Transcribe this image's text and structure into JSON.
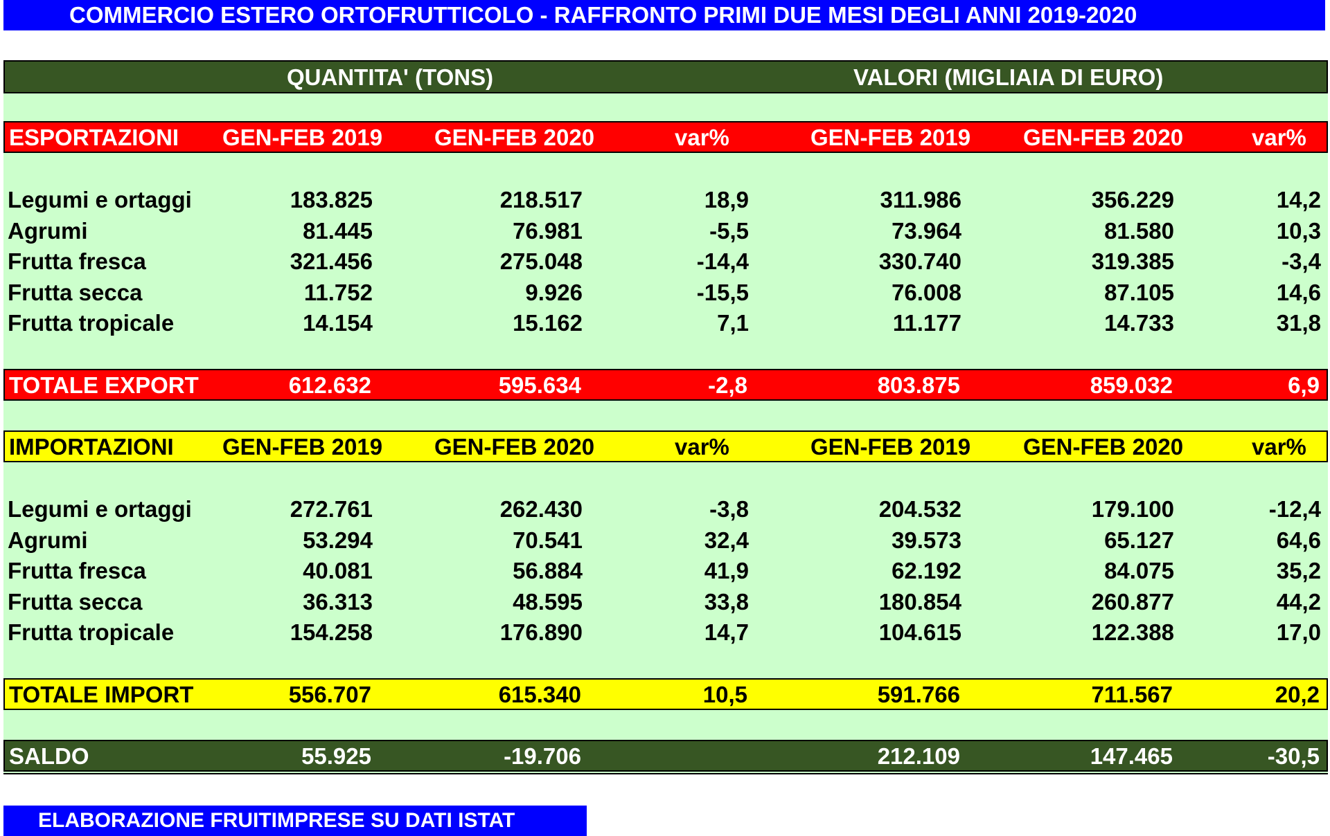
{
  "title": "COMMERCIO ESTERO ORTOFRUTTICOLO - RAFFRONTO PRIMI DUE MESI DEGLI ANNI 2019-2020",
  "group_headers": {
    "quantity": "QUANTITA' (TONS)",
    "value": "VALORI (MIGLIAIA DI EURO)"
  },
  "colors": {
    "title_bg": "#0000ff",
    "sheet_bg": "#ccffcc",
    "header_bg": "#375623",
    "export_bg": "#ff0000",
    "import_bg": "#ffff00"
  },
  "export": {
    "header": [
      "ESPORTAZIONI",
      "GEN-FEB 2019",
      "GEN-FEB 2020",
      "var%",
      "GEN-FEB 2019",
      "GEN-FEB 2020",
      "var%"
    ],
    "rows": [
      [
        "Legumi e ortaggi",
        "183.825",
        "218.517",
        "18,9",
        "311.986",
        "356.229",
        "14,2"
      ],
      [
        "Agrumi",
        "81.445",
        "76.981",
        "-5,5",
        "73.964",
        "81.580",
        "10,3"
      ],
      [
        "Frutta fresca",
        "321.456",
        "275.048",
        "-14,4",
        "330.740",
        "319.385",
        "-3,4"
      ],
      [
        "Frutta secca",
        "11.752",
        "9.926",
        "-15,5",
        "76.008",
        "87.105",
        "14,6"
      ],
      [
        "Frutta tropicale",
        "14.154",
        "15.162",
        "7,1",
        "11.177",
        "14.733",
        "31,8"
      ]
    ],
    "total": [
      "TOTALE EXPORT",
      "612.632",
      "595.634",
      "-2,8",
      "803.875",
      "859.032",
      "6,9"
    ]
  },
  "import": {
    "header": [
      "IMPORTAZIONI",
      "GEN-FEB 2019",
      "GEN-FEB 2020",
      "var%",
      "GEN-FEB 2019",
      "GEN-FEB 2020",
      "var%"
    ],
    "rows": [
      [
        "Legumi e ortaggi",
        "272.761",
        "262.430",
        "-3,8",
        "204.532",
        "179.100",
        "-12,4"
      ],
      [
        "Agrumi",
        "53.294",
        "70.541",
        "32,4",
        "39.573",
        "65.127",
        "64,6"
      ],
      [
        "Frutta fresca",
        "40.081",
        "56.884",
        "41,9",
        "62.192",
        "84.075",
        "35,2"
      ],
      [
        "Frutta secca",
        "36.313",
        "48.595",
        "33,8",
        "180.854",
        "260.877",
        "44,2"
      ],
      [
        "Frutta tropicale",
        "154.258",
        "176.890",
        "14,7",
        "104.615",
        "122.388",
        "17,0"
      ]
    ],
    "total": [
      "TOTALE IMPORT",
      "556.707",
      "615.340",
      "10,5",
      "591.766",
      "711.567",
      "20,2"
    ]
  },
  "saldo": [
    "SALDO",
    "55.925",
    "-19.706",
    "",
    "212.109",
    "147.465",
    "-30,5"
  ],
  "footer": "ELABORAZIONE FRUITIMPRESE SU DATI ISTAT"
}
